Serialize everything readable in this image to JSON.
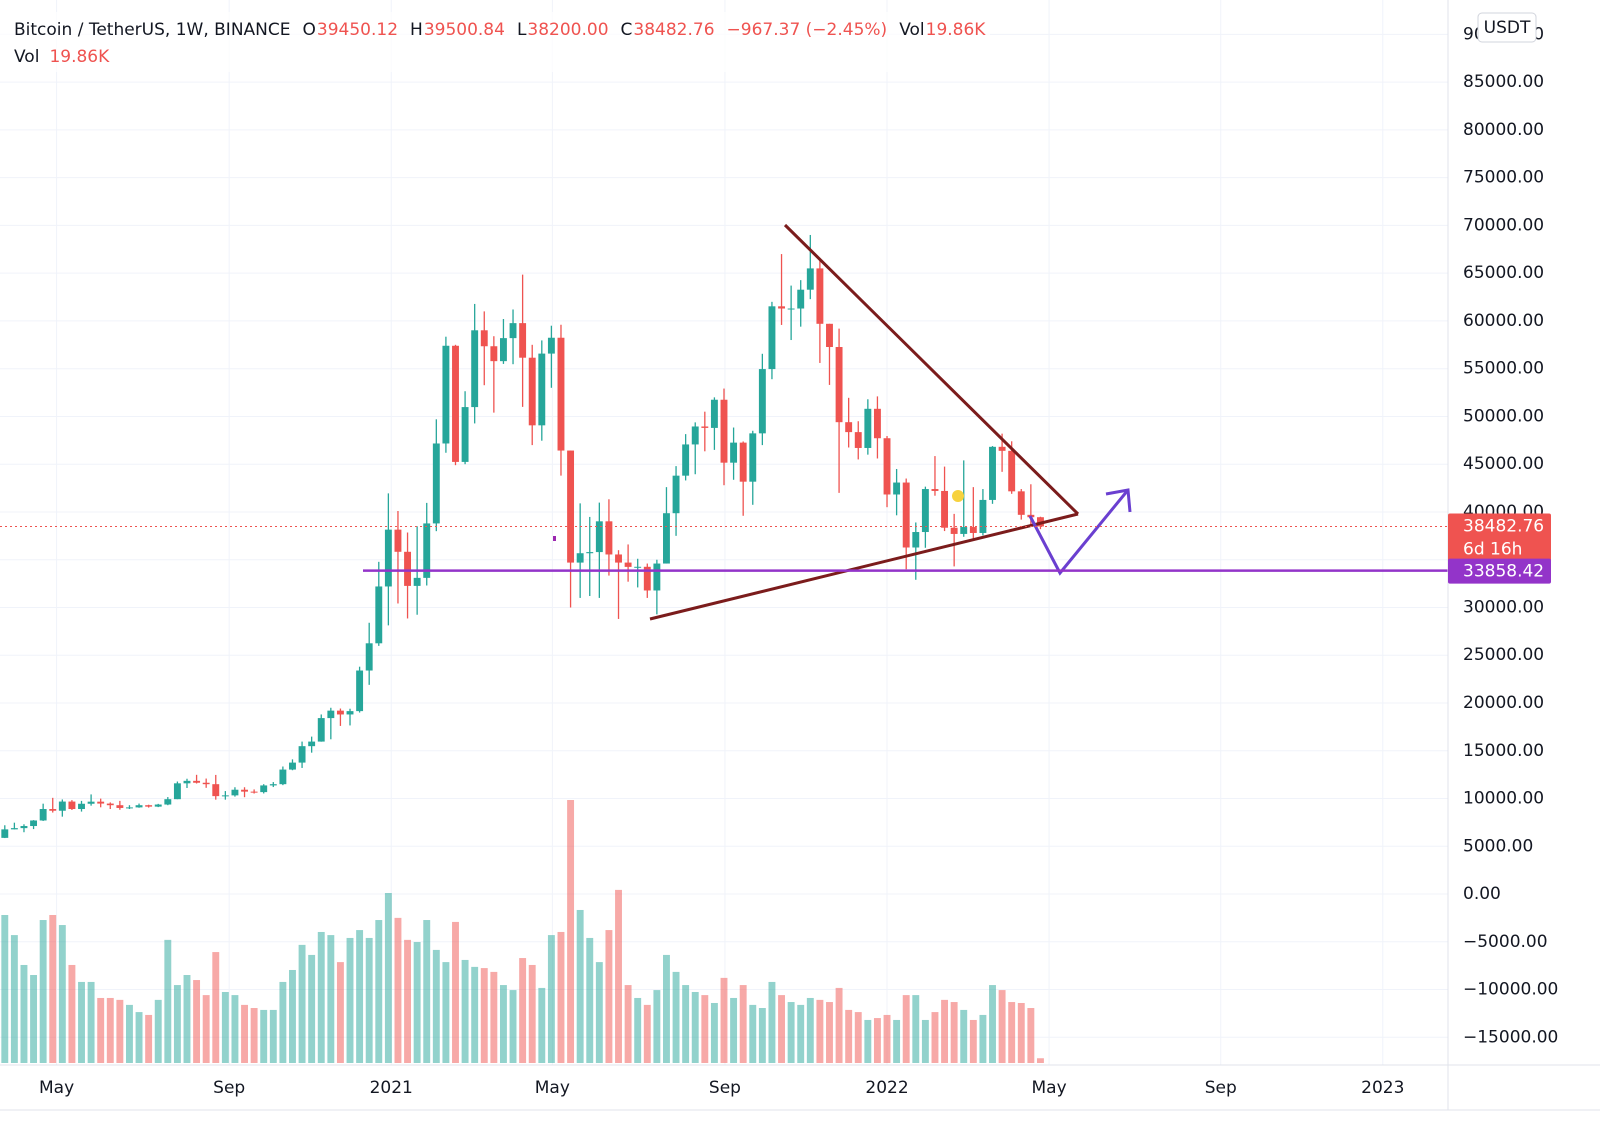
{
  "chart_data": {
    "type": "candlestick",
    "title": "Bitcoin / TetherUS, 1W, BINANCE",
    "header": {
      "labels": [
        "O",
        "H",
        "L",
        "C"
      ],
      "values": [
        "39450.12",
        "39500.84",
        "38200.00",
        "38482.76"
      ],
      "change": "−967.37 (−2.45%)",
      "vol_label": "Vol",
      "vol": "19.86K"
    },
    "x": [
      0,
      1,
      2,
      3,
      4,
      5,
      6,
      7,
      8,
      9,
      10,
      11,
      12,
      13,
      14,
      15,
      16,
      17,
      18,
      19,
      20,
      21,
      22,
      23,
      24,
      25,
      26,
      27,
      28,
      29,
      30,
      31,
      32,
      33,
      34,
      35,
      36,
      37,
      38,
      39,
      40,
      41,
      42,
      43,
      44,
      45,
      46,
      47,
      48,
      49,
      50,
      51,
      52,
      53,
      54,
      55,
      56,
      57,
      58,
      59,
      60,
      61,
      62,
      63,
      64,
      65,
      66,
      67,
      68,
      69,
      70,
      71,
      72,
      73,
      74,
      75,
      76,
      77,
      78,
      79,
      80,
      81,
      82,
      83,
      84,
      85,
      86,
      87,
      88,
      89,
      90,
      91,
      92,
      93,
      94,
      95,
      96,
      97,
      98,
      99,
      100,
      101,
      102,
      103,
      104,
      105,
      106,
      107,
      108
    ],
    "open": [
      5880,
      6770,
      6900,
      7120,
      7700,
      8900,
      8720,
      9680,
      8900,
      9450,
      9670,
      9470,
      9300,
      9010,
      9070,
      9300,
      9150,
      9370,
      9930,
      11590,
      11850,
      11650,
      11500,
      10250,
      10330,
      10920,
      10720,
      10670,
      11370,
      11500,
      13030,
      13760,
      15480,
      15960,
      18420,
      19200,
      18800,
      19150,
      23400,
      26250,
      32200,
      38150,
      35830,
      32260,
      33100,
      38800,
      47170,
      57400,
      45240,
      50980,
      59020,
      57350,
      55790,
      58200,
      59770,
      56150,
      49070,
      56580,
      58240,
      46430,
      34700,
      35680,
      35800,
      39020,
      35550,
      34700,
      34250,
      34260,
      31780,
      34600,
      39870,
      43800,
      47070,
      48950,
      48800,
      51750,
      45160,
      47260,
      43170,
      48230,
      54960,
      61530,
      61300,
      61300,
      63270,
      65500,
      59700,
      57270,
      49400,
      48360,
      46700,
      50800,
      47720,
      41830,
      43080,
      36280,
      37900,
      42400,
      42200,
      38350,
      37700,
      38420,
      37800,
      41260,
      46820,
      46400,
      42160,
      39700,
      39450.12
    ],
    "high": [
      7200,
      7470,
      7300,
      7740,
      9460,
      10070,
      9900,
      9830,
      9750,
      10430,
      9990,
      9590,
      9750,
      9300,
      9470,
      9350,
      9440,
      10150,
      11780,
      12070,
      12480,
      12090,
      12470,
      10780,
      11180,
      11180,
      10950,
      11500,
      11720,
      13350,
      14100,
      15960,
      16480,
      18800,
      19500,
      19420,
      19400,
      23800,
      28400,
      34780,
      41950,
      40100,
      37850,
      38500,
      40950,
      49700,
      58350,
      57500,
      52640,
      61780,
      61000,
      58400,
      60200,
      61200,
      64850,
      57500,
      57960,
      59500,
      59600,
      46430,
      40900,
      39480,
      40980,
      41330,
      36000,
      36600,
      35100,
      34600,
      35000,
      42600,
      44800,
      48150,
      49380,
      50500,
      52000,
      52920,
      48840,
      47380,
      48500,
      56560,
      62000,
      67000,
      63700,
      64270,
      69000,
      66300,
      59700,
      59200,
      51950,
      49500,
      51800,
      52100,
      47950,
      44500,
      43500,
      38900,
      42650,
      45850,
      44750,
      39800,
      45400,
      42600,
      42400,
      46900,
      48200,
      47400,
      42400,
      42900,
      39500.84
    ],
    "low": [
      5860,
      6770,
      6470,
      6800,
      7650,
      8530,
      8100,
      8800,
      8630,
      9250,
      9080,
      8900,
      8820,
      8900,
      9030,
      9050,
      9100,
      9300,
      9930,
      11100,
      11570,
      11120,
      9880,
      9880,
      10200,
      10140,
      10520,
      10530,
      11200,
      11400,
      12960,
      13200,
      14800,
      15950,
      16200,
      17600,
      17650,
      19000,
      21900,
      25980,
      28130,
      30420,
      28850,
      29240,
      32300,
      37990,
      46200,
      44900,
      45000,
      49270,
      53270,
      50400,
      55500,
      55470,
      51000,
      47000,
      47460,
      53000,
      43800,
      30000,
      31000,
      31200,
      31000,
      33340,
      28800,
      32700,
      32100,
      31000,
      29280,
      34600,
      37500,
      43300,
      43950,
      46350,
      46500,
      42800,
      43370,
      39600,
      40750,
      47000,
      53900,
      59580,
      58000,
      59400,
      62280,
      55600,
      53300,
      42000,
      46750,
      45500,
      46000,
      45600,
      40500,
      39650,
      34000,
      32900,
      36250,
      41700,
      38000,
      34300,
      37400,
      37150,
      37550,
      40850,
      44200,
      41900,
      39200,
      38500,
      38200
    ],
    "close": [
      6770,
      6900,
      7120,
      7700,
      8900,
      8720,
      9680,
      8900,
      9450,
      9670,
      9470,
      9300,
      9010,
      9070,
      9300,
      9150,
      9370,
      9930,
      11590,
      11850,
      11650,
      11500,
      10250,
      10330,
      10920,
      10720,
      10670,
      11370,
      11500,
      13030,
      13760,
      15480,
      15960,
      18420,
      19200,
      18800,
      19150,
      23400,
      26250,
      32200,
      38150,
      35830,
      32260,
      33100,
      38800,
      47170,
      57400,
      45240,
      50980,
      59020,
      57350,
      55790,
      58200,
      59770,
      56150,
      49070,
      56580,
      58240,
      46430,
      34700,
      35680,
      35800,
      39020,
      35550,
      34700,
      34250,
      34260,
      31780,
      34600,
      39870,
      43800,
      47070,
      48950,
      48800,
      51750,
      45160,
      47260,
      43170,
      48230,
      54960,
      61530,
      61300,
      61300,
      63270,
      65500,
      59700,
      57270,
      49400,
      48360,
      46700,
      50800,
      47720,
      41830,
      43080,
      36280,
      37900,
      42400,
      42200,
      38350,
      37700,
      38420,
      37800,
      41260,
      46820,
      46400,
      42160,
      39700,
      39450.12,
      38482.76
    ],
    "volume": [
      619000,
      535000,
      410000,
      368000,
      598000,
      619000,
      577000,
      410000,
      339000,
      339000,
      272000,
      272000,
      264000,
      243000,
      213000,
      201000,
      264000,
      515000,
      326000,
      368000,
      347000,
      284000,
      464000,
      297000,
      284000,
      243000,
      230000,
      222000,
      222000,
      339000,
      389000,
      494000,
      452000,
      548000,
      535000,
      422000,
      523000,
      556000,
      523000,
      598000,
      711000,
      607000,
      515000,
      506000,
      598000,
      473000,
      422000,
      590000,
      431000,
      402000,
      397000,
      381000,
      326000,
      305000,
      439000,
      410000,
      314000,
      535000,
      548000,
      1100000,
      640000,
      523000,
      422000,
      556000,
      724000,
      326000,
      272000,
      243000,
      305000,
      452000,
      381000,
      326000,
      297000,
      284000,
      251000,
      356000,
      272000,
      326000,
      243000,
      230000,
      339000,
      284000,
      255000,
      243000,
      272000,
      264000,
      255000,
      314000,
      222000,
      213000,
      180000,
      188000,
      201000,
      180000,
      284000,
      284000,
      180000,
      213000,
      264000,
      255000,
      222000,
      180000,
      201000,
      326000,
      305000,
      255000,
      251000,
      230000,
      19860
    ],
    "volume_lim": [
      0,
      1100000
    ],
    "up_color": "#26a69a",
    "down_color": "#ef5350",
    "xlim": [
      -0.5,
      150.5
    ],
    "xticks": [
      {
        "value": 5.4,
        "label": "May"
      },
      {
        "value": 23.4,
        "label": "Sep"
      },
      {
        "value": 40.3,
        "label": "2021"
      },
      {
        "value": 57.1,
        "label": "May"
      },
      {
        "value": 75.1,
        "label": "Sep"
      },
      {
        "value": 92.0,
        "label": "2022"
      },
      {
        "value": 108.9,
        "label": "May"
      },
      {
        "value": 126.8,
        "label": "Sep"
      },
      {
        "value": 143.7,
        "label": "2023"
      }
    ],
    "ylim": [
      -17900,
      93600
    ],
    "yticks": [
      {
        "value": -15000,
        "label": "−15000.00"
      },
      {
        "value": -10000,
        "label": "−10000.00"
      },
      {
        "value": -5000,
        "label": "−5000.00"
      },
      {
        "value": 0,
        "label": "0.00"
      },
      {
        "value": 5000,
        "label": "5000.00"
      },
      {
        "value": 10000,
        "label": "10000.00"
      },
      {
        "value": 15000,
        "label": "15000.00"
      },
      {
        "value": 20000,
        "label": "20000.00"
      },
      {
        "value": 25000,
        "label": "25000.00"
      },
      {
        "value": 30000,
        "label": "30000.00"
      },
      {
        "value": 35000,
        "label": "35000.00"
      },
      {
        "value": 40000,
        "label": "40000.00"
      },
      {
        "value": 45000,
        "label": "45000.00"
      },
      {
        "value": 50000,
        "label": "50000.00"
      },
      {
        "value": 55000,
        "label": "55000.00"
      },
      {
        "value": 60000,
        "label": "60000.00"
      },
      {
        "value": 65000,
        "label": "65000.00"
      },
      {
        "value": 70000,
        "label": "70000.00"
      },
      {
        "value": 75000,
        "label": "75000.00"
      },
      {
        "value": 80000,
        "label": "80000.00"
      },
      {
        "value": 85000,
        "label": "85000.00"
      },
      {
        "value": 90000,
        "label": "90000.00"
      }
    ],
    "grid": true,
    "last_price": 38482.76,
    "countdown": "6d 16h",
    "horizontal_line": 33858.42,
    "currency": "USDT"
  }
}
